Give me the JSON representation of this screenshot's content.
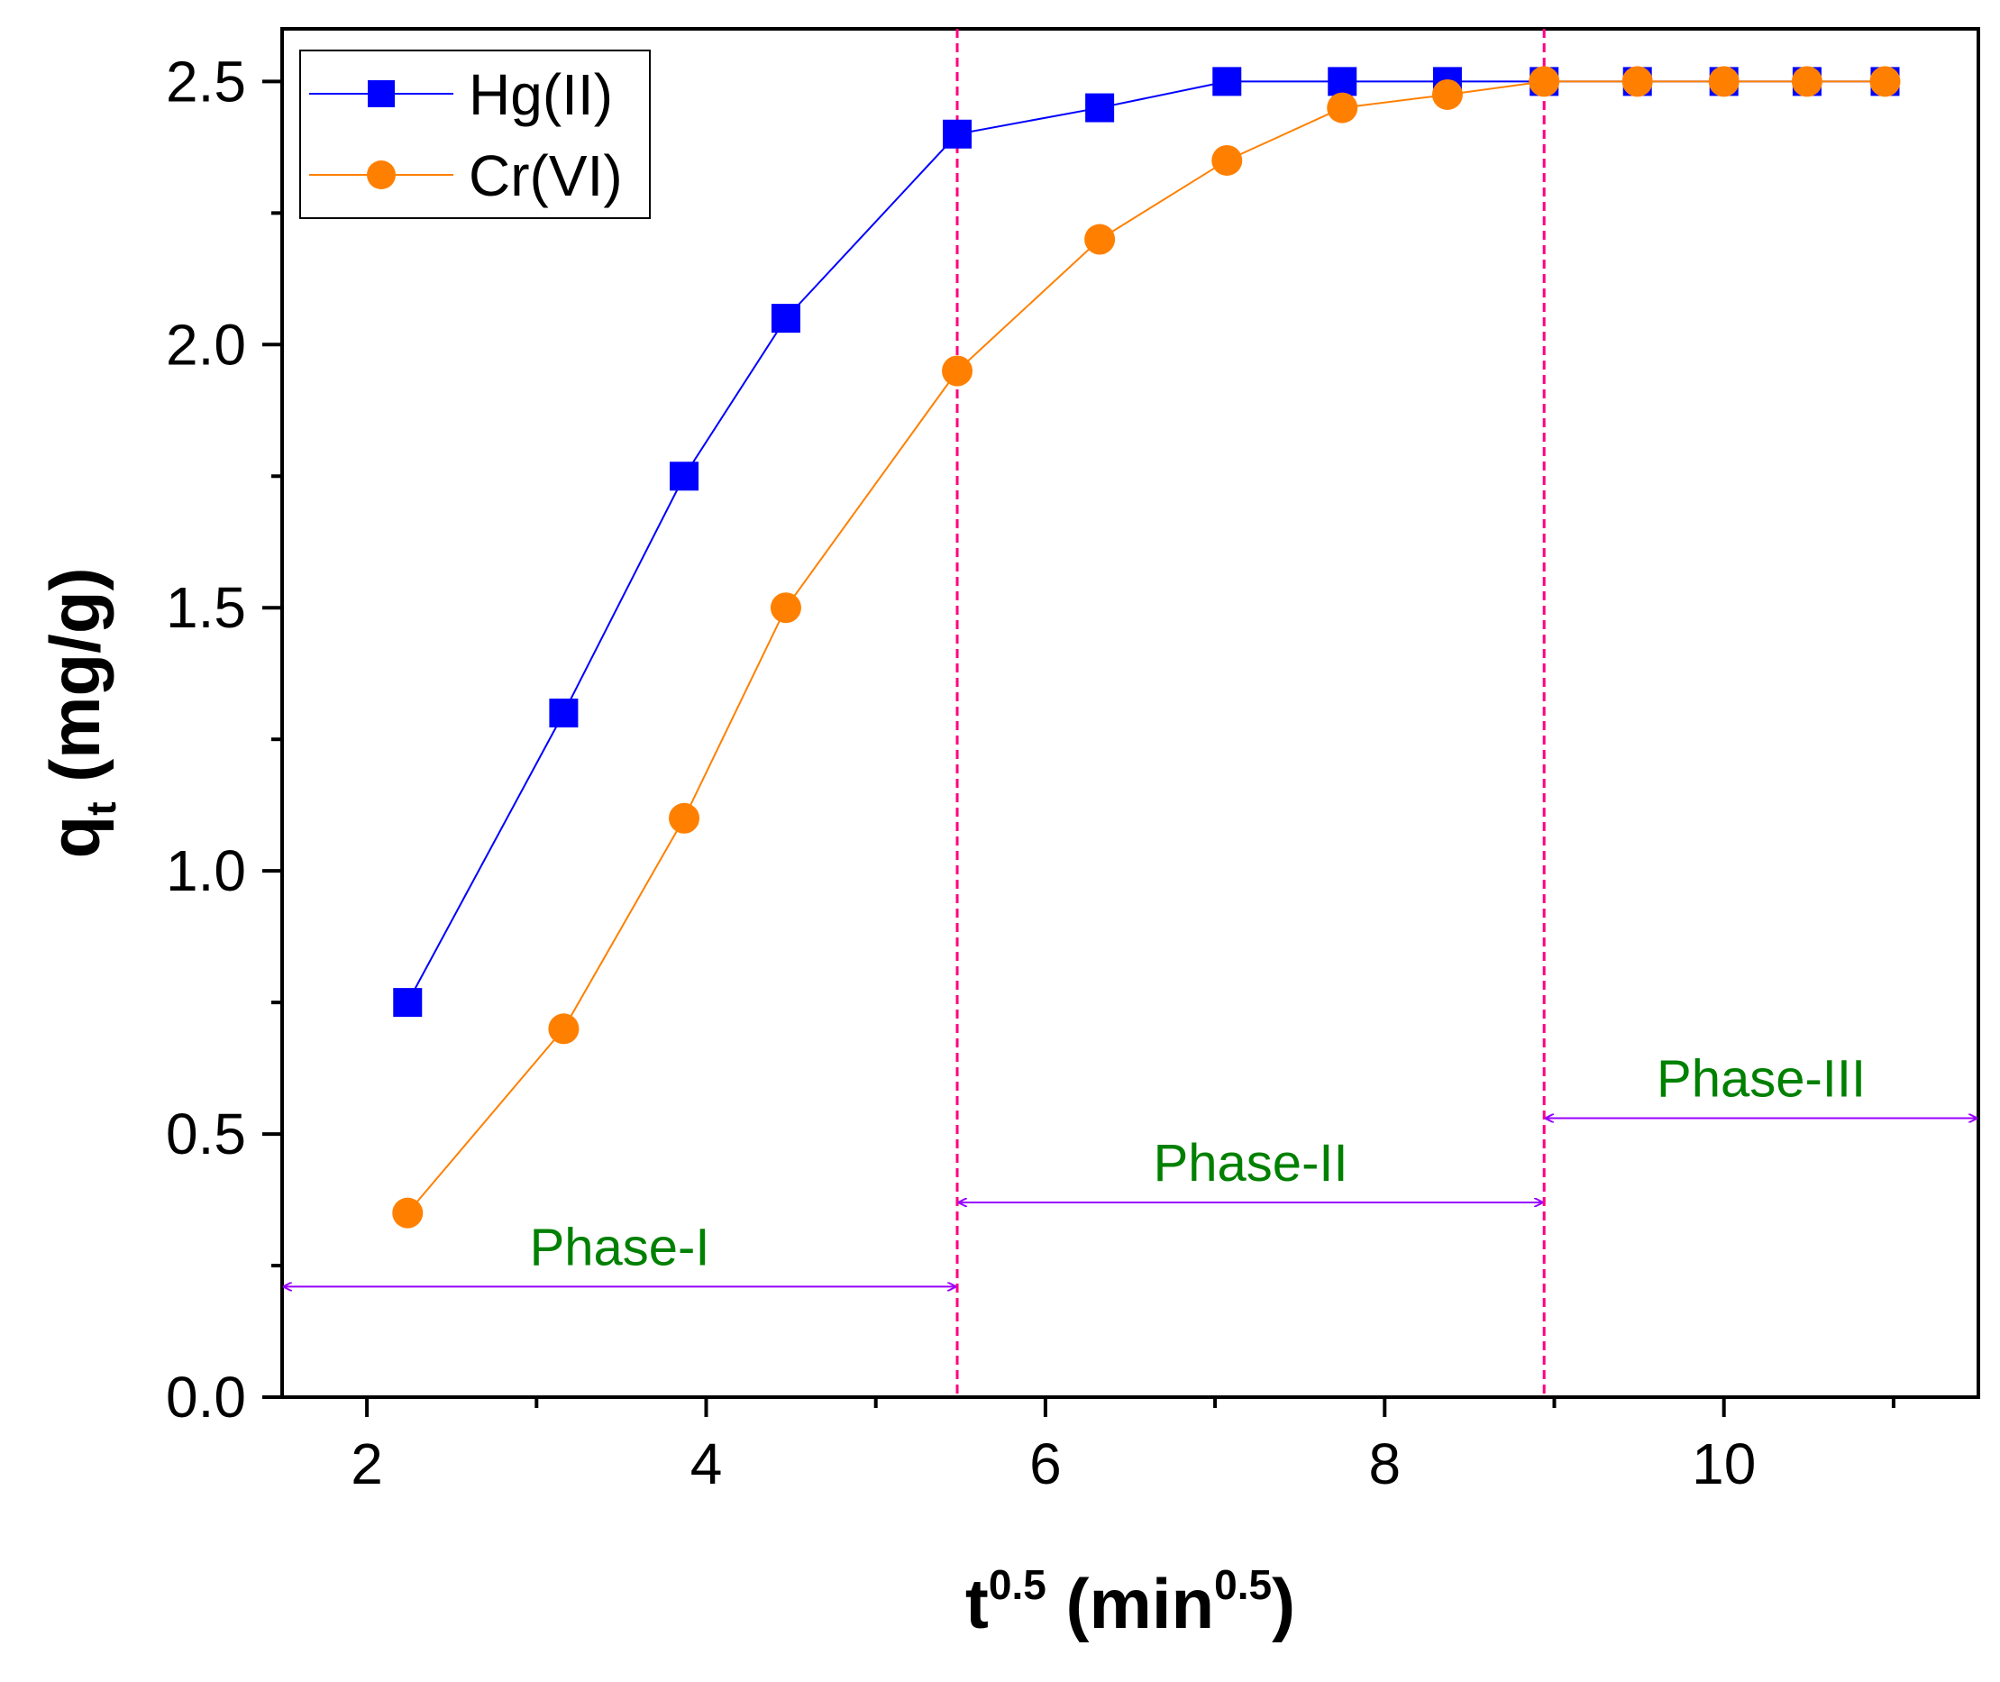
{
  "chart_data": {
    "type": "line",
    "title": "",
    "xlabel": {
      "base": "t",
      "sup": "0.5",
      "unit_open": " (min",
      "unit_sup": "0.5",
      "unit_close": ")"
    },
    "ylabel": {
      "base": "q",
      "sub": "t",
      "unit": " (mg/g)"
    },
    "xlim": [
      1.5,
      11.5
    ],
    "ylim": [
      0.0,
      2.6
    ],
    "x_ticks": [
      2,
      4,
      6,
      8,
      10
    ],
    "x_tick_labels": [
      "2",
      "4",
      "6",
      "8",
      "10"
    ],
    "y_ticks": [
      0.0,
      0.5,
      1.0,
      1.5,
      2.0,
      2.5
    ],
    "y_tick_labels": [
      "0.0",
      "0.5",
      "1.0",
      "1.5",
      "2.0",
      "2.5"
    ],
    "grid": false,
    "legend_position": "top-left",
    "series": [
      {
        "name": "Hg(II)",
        "marker": "square",
        "color": "#0000ff",
        "x": [
          2.24,
          3.16,
          3.87,
          4.47,
          5.48,
          6.32,
          7.07,
          7.75,
          8.37,
          8.94,
          9.49,
          10.0,
          10.49,
          10.95
        ],
        "y": [
          0.75,
          1.3,
          1.75,
          2.05,
          2.4,
          2.45,
          2.5,
          2.5,
          2.5,
          2.5,
          2.5,
          2.5,
          2.5,
          2.5
        ]
      },
      {
        "name": "Cr(VI)",
        "marker": "circle",
        "color": "#ff8000",
        "x": [
          2.24,
          3.16,
          3.87,
          4.47,
          5.48,
          6.32,
          7.07,
          7.75,
          8.37,
          8.94,
          9.49,
          10.0,
          10.49,
          10.95
        ],
        "y": [
          0.35,
          0.7,
          1.1,
          1.5,
          1.95,
          2.2,
          2.35,
          2.45,
          2.475,
          2.5,
          2.5,
          2.5,
          2.5,
          2.5
        ]
      }
    ],
    "phase_boundaries_x": [
      5.48,
      8.94
    ],
    "phases": [
      {
        "label": "Phase-I",
        "x_start": 1.5,
        "x_end": 5.48,
        "arrow_y": 0.21
      },
      {
        "label": "Phase-II",
        "x_start": 5.48,
        "x_end": 8.94,
        "arrow_y": 0.37
      },
      {
        "label": "Phase-III",
        "x_start": 8.94,
        "x_end": 11.5,
        "arrow_y": 0.53
      }
    ],
    "colors": {
      "boundary": "#ff0080",
      "arrow": "#9900ff",
      "phase_text": "#008000",
      "axis": "#000000"
    }
  }
}
